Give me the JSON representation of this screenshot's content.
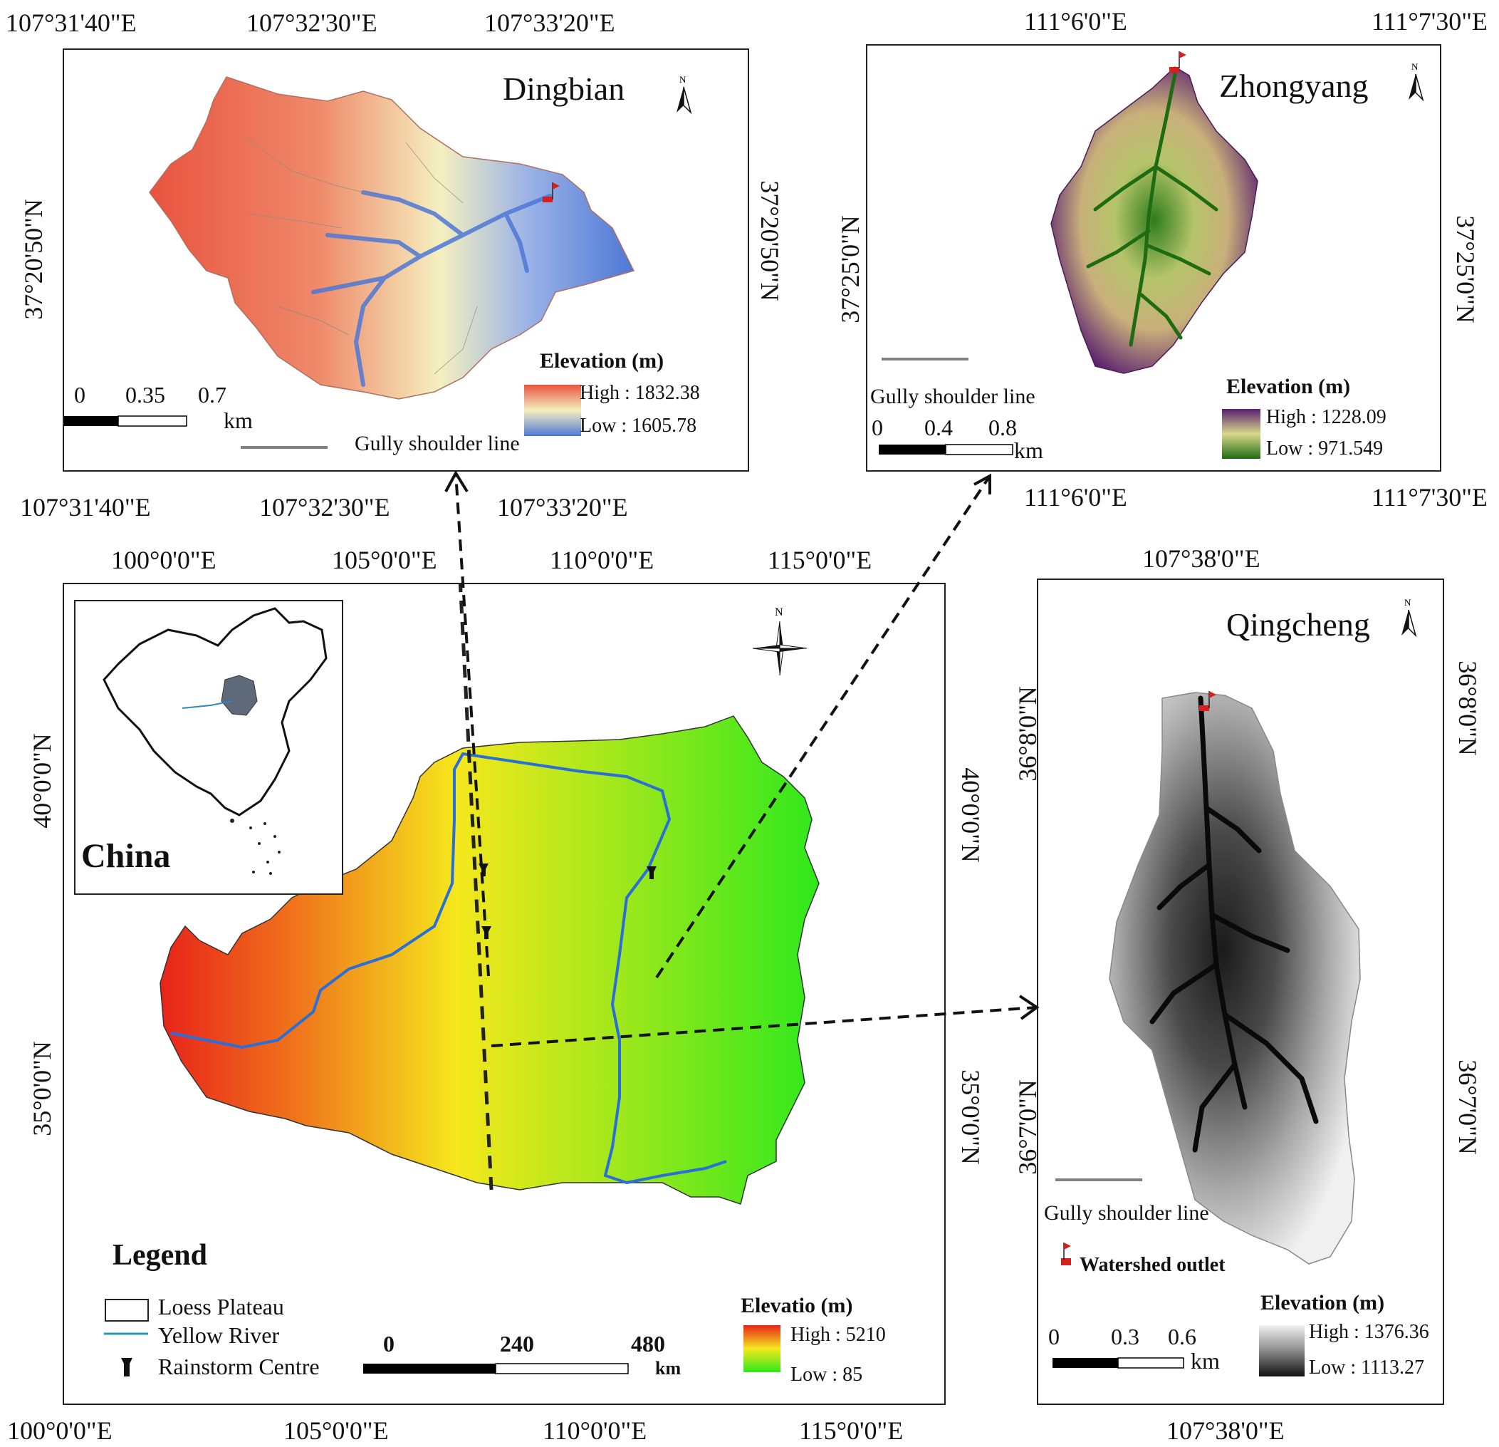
{
  "dingbian": {
    "title": "Dingbian",
    "top_ticks": [
      "107°31'40\"E",
      "107°32'30\"E",
      "107°33'20\"E"
    ],
    "bottom_ticks": [
      "107°31'40\"E",
      "107°32'30\"E",
      "107°33'20\"E"
    ],
    "left_tick": "37°20'50\"N",
    "right_tick": "37°20'50\"N",
    "legend_title": "Elevation (m)",
    "high": "High : 1832.38",
    "low": "Low : 1605.78",
    "scale": [
      "0",
      "0.35",
      "0.7"
    ],
    "scale_unit": "km",
    "gully_label": "Gully shoulder line",
    "ramp": [
      "#e8533f",
      "#f5f0c0",
      "#4e78d6"
    ]
  },
  "zhongyang": {
    "title": "Zhongyang",
    "top_ticks": [
      "111°6'0\"E",
      "111°7'30\"E"
    ],
    "bottom_ticks": [
      "111°6'0\"E",
      "111°7'30\"E"
    ],
    "left_tick": "37°25'0\"N",
    "right_tick": "37°25'0\"N",
    "legend_title": "Elevation (m)",
    "high": "High : 1228.09",
    "low": "Low : 971.549",
    "scale": [
      "0",
      "0.4",
      "0.8"
    ],
    "scale_unit": "km",
    "gully_label": "Gully shoulder line",
    "ramp": [
      "#5a1f70",
      "#d8d88a",
      "#1f6b12"
    ]
  },
  "qingcheng": {
    "title": "Qingcheng",
    "top_tick": "107°38'0\"E",
    "bottom_tick": "107°38'0\"E",
    "left_ticks": [
      "36°8'0\"N",
      "36°7'0\"N"
    ],
    "right_ticks": [
      "36°8'0\"N",
      "36°7'0\"N"
    ],
    "legend_title": "Elevation (m)",
    "high": "High : 1376.36",
    "low": "Low : 1113.27",
    "scale": [
      "0",
      "0.3",
      "0.6"
    ],
    "scale_unit": "km",
    "gully_label": "Gully shoulder line",
    "outlet_label": "Watershed outlet",
    "ramp": [
      "#f2f2f2",
      "#8a8a8a",
      "#111111"
    ]
  },
  "main": {
    "top_ticks": [
      "100°0'0\"E",
      "105°0'0\"E",
      "110°0'0\"E",
      "115°0'0\"E"
    ],
    "bottom_ticks": [
      "100°0'0\"E",
      "105°0'0\"E",
      "110°0'0\"E",
      "115°0'0\"E"
    ],
    "left_ticks": [
      "40°0'0\"N",
      "35°0'0\"N"
    ],
    "right_ticks": [
      "40°0'0\"N",
      "35°0'0\"N"
    ],
    "inset_label": "China",
    "legend_title": "Legend",
    "legend_items": [
      "Loess Plateau",
      "Yellow River",
      "Rainstorm Centre"
    ],
    "elev_title": "Elevatio (m)",
    "high": "High : 5210",
    "low": "Low : 85",
    "scale": [
      "0",
      "240",
      "480"
    ],
    "scale_unit": "km",
    "north": "N",
    "ramp": [
      "#e8231a",
      "#f5e81c",
      "#2ee81c"
    ]
  },
  "north_label": "N"
}
